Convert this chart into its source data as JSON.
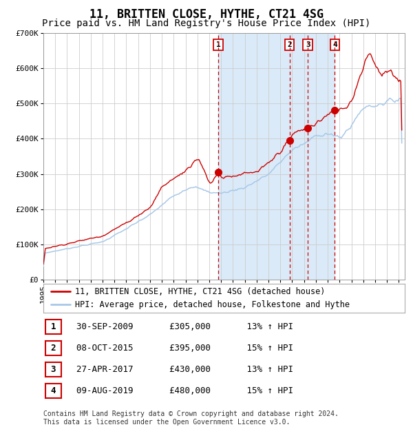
{
  "title": "11, BRITTEN CLOSE, HYTHE, CT21 4SG",
  "subtitle": "Price paid vs. HM Land Registry's House Price Index (HPI)",
  "ylim": [
    0,
    700000
  ],
  "xlim_start": 1995.0,
  "xlim_end": 2025.5,
  "yticks": [
    0,
    100000,
    200000,
    300000,
    400000,
    500000,
    600000,
    700000
  ],
  "ytick_labels": [
    "£0",
    "£100K",
    "£200K",
    "£300K",
    "£400K",
    "£500K",
    "£600K",
    "£700K"
  ],
  "xticks": [
    1995,
    1996,
    1997,
    1998,
    1999,
    2000,
    2001,
    2002,
    2003,
    2004,
    2005,
    2006,
    2007,
    2008,
    2009,
    2010,
    2011,
    2012,
    2013,
    2014,
    2015,
    2016,
    2017,
    2018,
    2019,
    2020,
    2021,
    2022,
    2023,
    2024,
    2025
  ],
  "hpi_color": "#a8c8e8",
  "price_color": "#cc0000",
  "grid_color": "#cccccc",
  "background_color": "#ffffff",
  "shade_color": "#daeaf8",
  "title_fontsize": 12,
  "subtitle_fontsize": 10,
  "tick_fontsize": 8,
  "legend_fontsize": 8.5,
  "table_fontsize": 9,
  "footnote_fontsize": 7,
  "transactions": [
    {
      "num": 1,
      "date": "30-SEP-2009",
      "price": 305000,
      "year": 2009.75,
      "pct": "13%",
      "dir": "↑"
    },
    {
      "num": 2,
      "date": "08-OCT-2015",
      "price": 395000,
      "year": 2015.77,
      "pct": "15%",
      "dir": "↑"
    },
    {
      "num": 3,
      "date": "27-APR-2017",
      "price": 430000,
      "year": 2017.32,
      "pct": "13%",
      "dir": "↑"
    },
    {
      "num": 4,
      "date": "09-AUG-2019",
      "price": 480000,
      "year": 2019.6,
      "pct": "15%",
      "dir": "↑"
    }
  ],
  "footnote": "Contains HM Land Registry data © Crown copyright and database right 2024.\nThis data is licensed under the Open Government Licence v3.0.",
  "legend_label_price": "11, BRITTEN CLOSE, HYTHE, CT21 4SG (detached house)",
  "legend_label_hpi": "HPI: Average price, detached house, Folkestone and Hythe",
  "hpi_landmarks_x": [
    1995,
    1997,
    2000,
    2002,
    2004,
    2006,
    2007.5,
    2009,
    2010,
    2012,
    2014,
    2016,
    2017,
    2018,
    2019,
    2020,
    2021,
    2022,
    2023,
    2024,
    2025.25
  ],
  "hpi_landmarks_y": [
    75000,
    88000,
    108000,
    145000,
    185000,
    240000,
    265000,
    248000,
    245000,
    262000,
    300000,
    370000,
    385000,
    410000,
    415000,
    400000,
    440000,
    490000,
    495000,
    505000,
    515000
  ],
  "price_landmarks_x": [
    1995,
    1997,
    2000,
    2002,
    2004,
    2005,
    2007,
    2008,
    2009.0,
    2009.75,
    2010,
    2011,
    2013,
    2014,
    2015.77,
    2016,
    2017.32,
    2018,
    2019.6,
    2020.5,
    2021,
    2022,
    2022.5,
    2023,
    2023.5,
    2024,
    2025.25
  ],
  "price_landmarks_y": [
    88000,
    102000,
    125000,
    162000,
    205000,
    265000,
    310000,
    350000,
    270000,
    305000,
    290000,
    295000,
    305000,
    330000,
    395000,
    415000,
    430000,
    445000,
    480000,
    490000,
    510000,
    610000,
    650000,
    610000,
    575000,
    590000,
    565000
  ]
}
